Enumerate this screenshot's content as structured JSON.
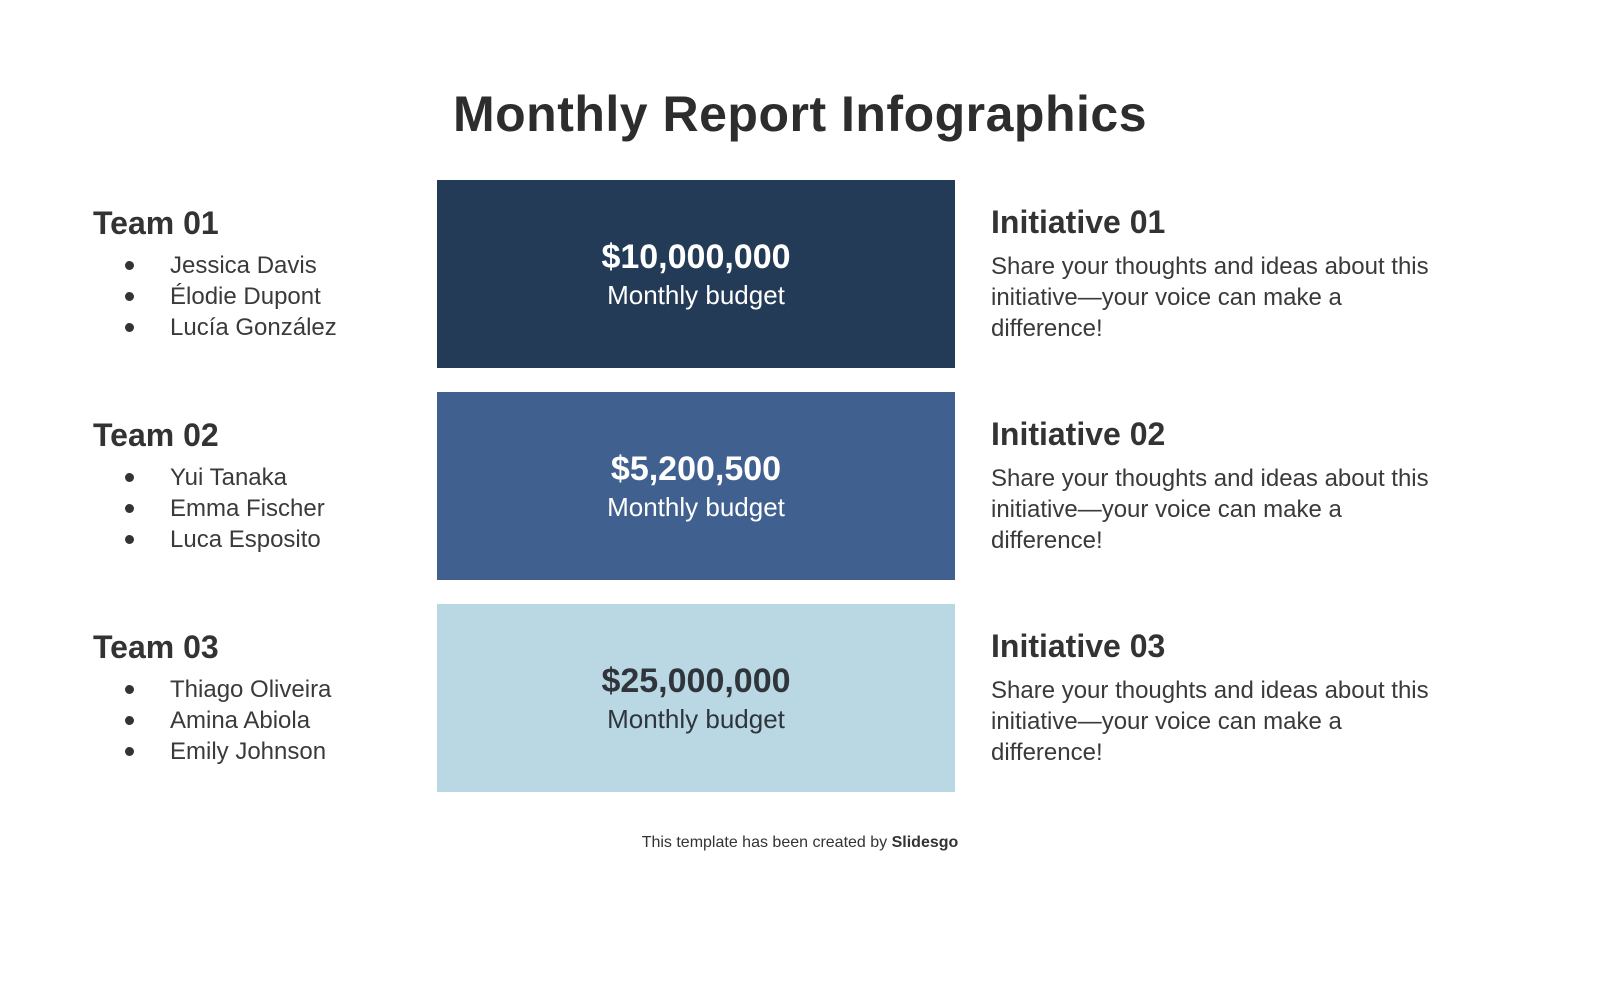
{
  "page": {
    "title": "Monthly Report Infographics",
    "footer_prefix": "This template has been created by ",
    "footer_brand": "Slidesgo"
  },
  "colors": {
    "background": "#ffffff",
    "title_text": "#2d2d2d",
    "body_text": "#3a3a3a",
    "navy": "#243b57",
    "mid_blue": "#40618f",
    "light_blue": "#b9d8e4"
  },
  "rows": [
    {
      "team": {
        "title": "Team 01",
        "members": [
          "Jessica Davis",
          "Élodie Dupont",
          "Lucía González"
        ]
      },
      "budget": {
        "amount": "$10,000,000",
        "label": "Monthly budget",
        "bg": "#243b57",
        "fg": "#ffffff"
      },
      "initiative": {
        "title": "Initiative 01",
        "description": "Share your thoughts and ideas about this initiative—your voice can make a difference!"
      }
    },
    {
      "team": {
        "title": "Team 02",
        "members": [
          "Yui Tanaka",
          "Emma Fischer",
          "Luca Esposito"
        ]
      },
      "budget": {
        "amount": "$5,200,500",
        "label": "Monthly budget",
        "bg": "#40618f",
        "fg": "#ffffff"
      },
      "initiative": {
        "title": "Initiative 02",
        "description": "Share your thoughts and ideas about this initiative—your voice can make a difference!"
      }
    },
    {
      "team": {
        "title": "Team 03",
        "members": [
          "Thiago Oliveira",
          "Amina Abiola",
          "Emily Johnson"
        ]
      },
      "budget": {
        "amount": "$25,000,000",
        "label": "Monthly budget",
        "bg": "#b9d8e4",
        "fg": "#30353c"
      },
      "initiative": {
        "title": "Initiative 03",
        "description": "Share your thoughts and ideas about this initiative—your voice can make a difference!"
      }
    }
  ]
}
